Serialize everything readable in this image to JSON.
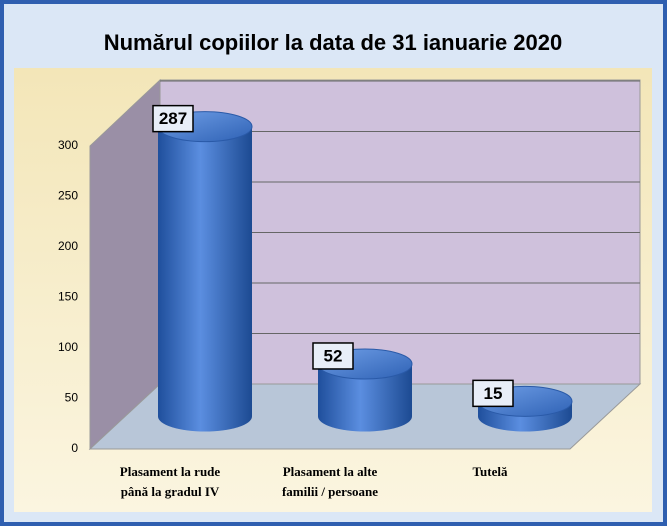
{
  "chart_data": {
    "type": "bar3d",
    "title": "Numărul copiilor la data de  31 ianuarie 2020",
    "categories": [
      "Plasament la rude\npână la gradul IV",
      "Plasament la alte\nfamilii / persoane",
      "Tutelă"
    ],
    "values": [
      287,
      52,
      15
    ],
    "color": "#3a6fc4",
    "ylim": [
      0,
      300
    ],
    "yticks": [
      0,
      50,
      100,
      150,
      200,
      250,
      300
    ],
    "grid": true
  }
}
